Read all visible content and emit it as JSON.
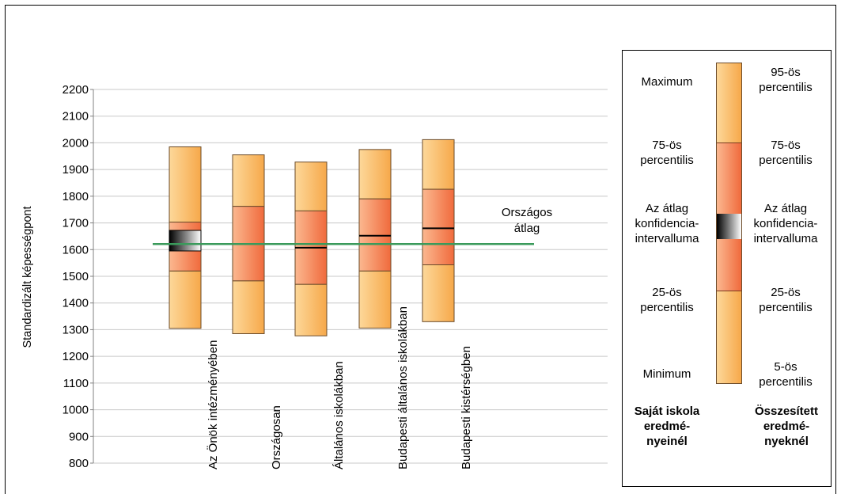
{
  "chart_data": {
    "type": "box",
    "ylabel": "Standardizált képességpont",
    "ylim": [
      800,
      2200
    ],
    "yticks": [
      800,
      900,
      1000,
      1100,
      1200,
      1300,
      1400,
      1500,
      1600,
      1700,
      1800,
      1900,
      2000,
      2100,
      2200
    ],
    "grid": true,
    "categories": [
      "Az Önök intézményében",
      "Országosan",
      "Általános iskolákban",
      "Budapesti általános iskolákban",
      "Budapesti kistérségben"
    ],
    "boxes": [
      {
        "p5": 1305,
        "p25": 1520,
        "ci_low": 1595,
        "mean": 1635,
        "ci_high": 1672,
        "p75": 1703,
        "p95": 1985
      },
      {
        "p5": 1285,
        "p25": 1483,
        "mean": 1621,
        "p75": 1762,
        "p95": 1955
      },
      {
        "p5": 1277,
        "p25": 1470,
        "mean": 1607,
        "p75": 1745,
        "p95": 1928
      },
      {
        "p5": 1306,
        "p25": 1520,
        "mean": 1652,
        "p75": 1790,
        "p95": 1975
      },
      {
        "p5": 1330,
        "p25": 1543,
        "mean": 1680,
        "p75": 1826,
        "p95": 2012
      }
    ],
    "reference_line": {
      "label_line1": "Országos",
      "label_line2": "átlag",
      "value": 1621,
      "color": "#3a9a5b"
    },
    "colors": {
      "outer": "#f6a84a",
      "outer_light": "#fdd89a",
      "inner": "#f06a3c",
      "inner_light": "#fbb890",
      "ci_dark": "#000000",
      "ci_light": "#ffffff",
      "grid": "#c8c8c8"
    }
  },
  "legend": {
    "left_labels": [
      "Maximum",
      "75-ös percentilis",
      "Az átlag konfidencia-intervalluma",
      "25-ös percentilis",
      "Minimum"
    ],
    "right_labels": [
      "95-ös percentilis",
      "75-ös percentilis",
      "Az átlag konfidencia-intervalluma",
      "25-ös percentilis",
      "5-ös percentilis"
    ],
    "left_footer": "Saját iskola eredmé-nyeinél",
    "right_footer": "Összesített eredmé-nyeknél"
  }
}
